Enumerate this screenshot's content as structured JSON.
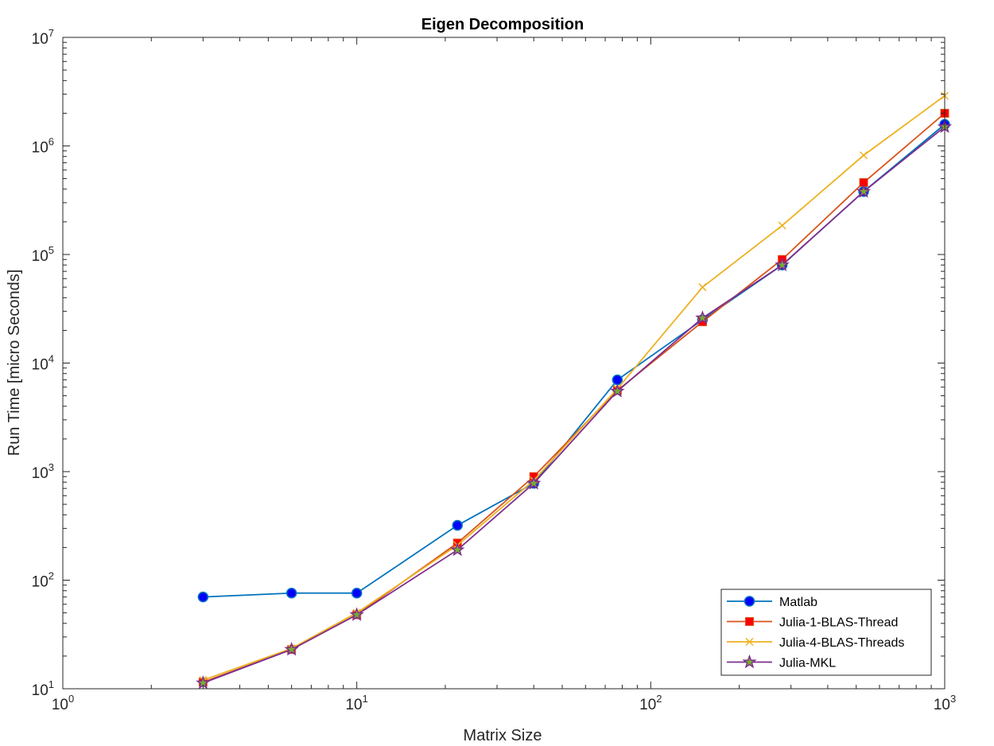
{
  "chart_data": {
    "type": "line",
    "title": "Eigen Decomposition",
    "xlabel": "Matrix Size",
    "ylabel": "Run Time  [micro Seconds]",
    "xscale": "log",
    "yscale": "log",
    "xlim": [
      1,
      1000
    ],
    "ylim": [
      10,
      10000000
    ],
    "x_ticks": [
      {
        "base": "10",
        "exp": "0",
        "value": 1
      },
      {
        "base": "10",
        "exp": "1",
        "value": 10
      },
      {
        "base": "10",
        "exp": "2",
        "value": 100
      },
      {
        "base": "10",
        "exp": "3",
        "value": 1000
      }
    ],
    "y_ticks": [
      {
        "base": "10",
        "exp": "1",
        "value": 10
      },
      {
        "base": "10",
        "exp": "2",
        "value": 100
      },
      {
        "base": "10",
        "exp": "3",
        "value": 1000
      },
      {
        "base": "10",
        "exp": "4",
        "value": 10000
      },
      {
        "base": "10",
        "exp": "5",
        "value": 100000
      },
      {
        "base": "10",
        "exp": "6",
        "value": 1000000
      },
      {
        "base": "10",
        "exp": "7",
        "value": 10000000
      }
    ],
    "grid": false,
    "legend_position": "bottom-right",
    "x": [
      3,
      6,
      10,
      22,
      40,
      77,
      150,
      280,
      530,
      1000
    ],
    "series": [
      {
        "name": "Matlab",
        "color": "#0072BD",
        "marker": "circle",
        "marker_fill": "#0000FF",
        "values": [
          70,
          76,
          76,
          320,
          780,
          7000,
          25000,
          80000,
          380000,
          1580000
        ]
      },
      {
        "name": "Julia-1-BLAS-Thread",
        "color": "#D95319",
        "marker": "square",
        "marker_fill": "#FF0000",
        "values": [
          11.5,
          23,
          48,
          220,
          900,
          5600,
          24000,
          90000,
          460000,
          2000000
        ]
      },
      {
        "name": "Julia-4-BLAS-Threads",
        "color": "#EDB120",
        "marker": "x",
        "marker_fill": "none",
        "values": [
          12,
          23.5,
          50,
          210,
          830,
          5800,
          50000,
          185000,
          820000,
          2900000
        ]
      },
      {
        "name": "Julia-MKL",
        "color": "#7E2F8E",
        "marker": "pentagram",
        "marker_fill": "#77AC30",
        "values": [
          11.3,
          23,
          48,
          190,
          780,
          5500,
          26000,
          80000,
          380000,
          1500000
        ]
      }
    ]
  }
}
